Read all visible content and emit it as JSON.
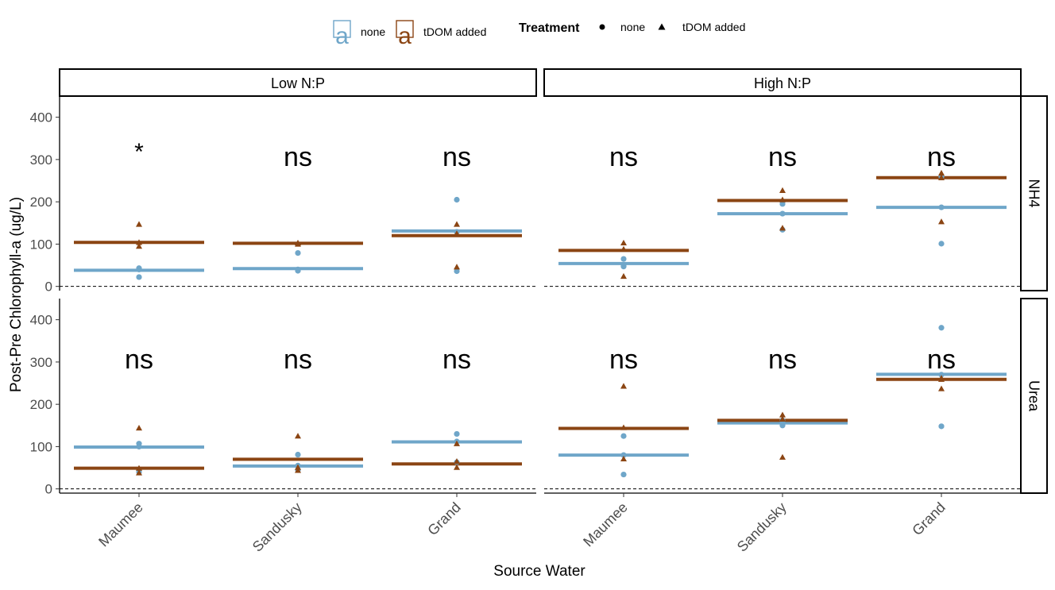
{
  "chart_data": {
    "type": "scatter",
    "title": "",
    "xlabel": "Source Water",
    "ylabel": "Post-Pre Chlorophyll-a (ug/L)",
    "ylim": [
      -10,
      450
    ],
    "yticks": [
      0,
      100,
      200,
      300,
      400
    ],
    "reference_line_y": 0,
    "categories": [
      "Maumee",
      "Sandusky",
      "Grand"
    ],
    "facet_columns": [
      "Low N:P",
      "High N:P"
    ],
    "facet_rows": [
      "NH4",
      "Urea"
    ],
    "colors": {
      "none": "#6fa6c9",
      "tDOM added": "#8b4513"
    },
    "legend_fill": {
      "labels": [
        "none",
        "tDOM added"
      ],
      "key_glyph": "a",
      "placement": "top"
    },
    "legend_shape": {
      "title": "Treatment",
      "labels": [
        "none",
        "tDOM added"
      ],
      "shapes": [
        "circle",
        "triangle"
      ],
      "placement": "top"
    },
    "panels": [
      {
        "col": "Low N:P",
        "row": "NH4",
        "groups": [
          {
            "category": "Maumee",
            "label": "*",
            "mean_none": 38,
            "mean_tdom": 104,
            "none_points": [
              22,
              40,
              43
            ],
            "tdom_points": [
              95,
              104,
              147
            ]
          },
          {
            "category": "Sandusky",
            "label": "ns",
            "mean_none": 42,
            "mean_tdom": 102,
            "none_points": [
              37,
              40,
              79
            ],
            "tdom_points": [
              100,
              103
            ]
          },
          {
            "category": "Grand",
            "label": "ns",
            "mean_none": 131,
            "mean_tdom": 120,
            "none_points": [
              36,
              129,
              205
            ],
            "tdom_points": [
              46,
              125,
              147
            ]
          }
        ]
      },
      {
        "col": "High N:P",
        "row": "NH4",
        "groups": [
          {
            "category": "Maumee",
            "label": "ns",
            "mean_none": 54,
            "mean_tdom": 85,
            "none_points": [
              47,
              51,
              65
            ],
            "tdom_points": [
              24,
              88,
              103
            ]
          },
          {
            "category": "Sandusky",
            "label": "ns",
            "mean_none": 172,
            "mean_tdom": 203,
            "none_points": [
              134,
              172,
              195
            ],
            "tdom_points": [
              138,
              205,
              227
            ]
          },
          {
            "category": "Grand",
            "label": "ns",
            "mean_none": 187,
            "mean_tdom": 257,
            "none_points": [
              101,
              187,
              259
            ],
            "tdom_points": [
              153,
              257,
              268
            ]
          }
        ]
      },
      {
        "col": "Low N:P",
        "row": "Urea",
        "groups": [
          {
            "category": "Maumee",
            "label": "ns",
            "mean_none": 99,
            "mean_tdom": 49,
            "none_points": [
              40,
              100,
              107
            ],
            "tdom_points": [
              38,
              49,
              144
            ]
          },
          {
            "category": "Sandusky",
            "label": "ns",
            "mean_none": 54,
            "mean_tdom": 70,
            "none_points": [
              45,
              55,
              81
            ],
            "tdom_points": [
              44,
              51,
              125
            ]
          },
          {
            "category": "Grand",
            "label": "ns",
            "mean_none": 111,
            "mean_tdom": 59,
            "none_points": [
              63,
              112,
              130
            ],
            "tdom_points": [
              51,
              65,
              107
            ]
          }
        ]
      },
      {
        "col": "High N:P",
        "row": "Urea",
        "groups": [
          {
            "category": "Maumee",
            "label": "ns",
            "mean_none": 80,
            "mean_tdom": 143,
            "none_points": [
              34,
              80,
              125
            ],
            "tdom_points": [
              71,
              145,
              243
            ]
          },
          {
            "category": "Sandusky",
            "label": "ns",
            "mean_none": 156,
            "mean_tdom": 162,
            "none_points": [
              150,
              158,
              162
            ],
            "tdom_points": [
              75,
              165,
              175
            ]
          },
          {
            "category": "Grand",
            "label": "ns",
            "mean_none": 271,
            "mean_tdom": 259,
            "none_points": [
              148,
              270,
              381
            ],
            "tdom_points": [
              237,
              259,
              262
            ]
          }
        ]
      }
    ]
  }
}
